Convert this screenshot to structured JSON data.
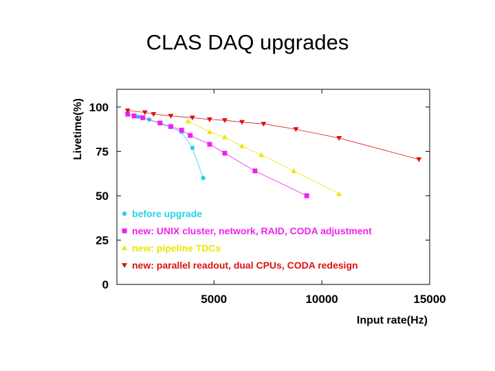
{
  "chart_data": {
    "type": "line",
    "title": "CLAS DAQ upgrades",
    "xlabel": "Input rate(Hz)",
    "ylabel": "Livetime(%)",
    "xlim": [
      500,
      15000
    ],
    "ylim": [
      0,
      110
    ],
    "xticks": [
      5000,
      10000,
      15000
    ],
    "xtick_labels": [
      "5000",
      "10000",
      "15000"
    ],
    "yticks": [
      0,
      25,
      50,
      75,
      100
    ],
    "ytick_labels": [
      "0",
      "25",
      "50",
      "75",
      "100"
    ],
    "grid": false,
    "legend_position": "lower-left inside",
    "series": [
      {
        "name": "before upgrade",
        "color": "#22d4e8",
        "marker": "circle",
        "x": [
          1000,
          1500,
          2000,
          3500,
          4000,
          4500
        ],
        "y": [
          96,
          94.5,
          93,
          86,
          77,
          60
        ]
      },
      {
        "name": "new: UNIX cluster, network, RAID, CODA adjustment",
        "color": "#ee22ee",
        "marker": "square",
        "x": [
          1000,
          1300,
          1700,
          2500,
          3000,
          3500,
          3900,
          4800,
          5500,
          6900,
          9300
        ],
        "y": [
          96,
          95,
          94,
          91,
          89,
          87,
          84,
          79,
          74,
          64,
          50
        ]
      },
      {
        "name": "new: pipeline TDCs",
        "color": "#e8e800",
        "marker": "triangle-up",
        "x": [
          3800,
          4800,
          5500,
          6300,
          7200,
          8700,
          10800
        ],
        "y": [
          92,
          86,
          83,
          78,
          73,
          64,
          51
        ]
      },
      {
        "name": "new: parallel readout, dual CPUs, CODA redesign",
        "color": "#dd1111",
        "marker": "triangle-down",
        "x": [
          1000,
          1800,
          2200,
          3000,
          4000,
          4800,
          5500,
          6300,
          7300,
          8800,
          10800,
          14500
        ],
        "y": [
          98,
          97,
          96,
          95,
          94,
          93,
          92.5,
          91.5,
          90.5,
          87.5,
          82.5,
          70.5
        ]
      }
    ]
  }
}
